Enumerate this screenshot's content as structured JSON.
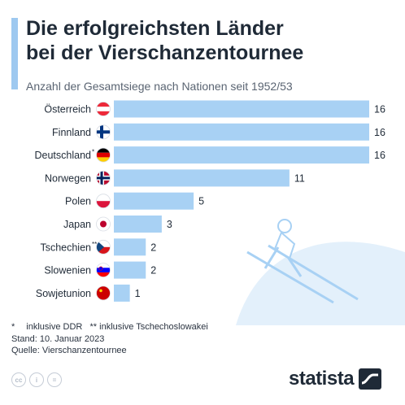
{
  "title_line1": "Die erfolgreichsten Länder",
  "title_line2": "bei der Vierschanzentournee",
  "subtitle": "Anzahl der Gesamtsiege nach Nationen seit 1952/53",
  "chart_data": {
    "type": "bar",
    "orientation": "horizontal",
    "categories": [
      "Österreich",
      "Finnland",
      "Deutschland",
      "Norwegen",
      "Polen",
      "Japan",
      "Tschechien",
      "Slowenien",
      "Sowjetunion"
    ],
    "category_marks": [
      "",
      "",
      "*",
      "",
      "",
      "",
      "**",
      "",
      ""
    ],
    "values": [
      16,
      16,
      16,
      11,
      5,
      3,
      2,
      2,
      1
    ],
    "xlim": [
      0,
      16
    ],
    "grid": false,
    "legend": "none",
    "bar_color": "#a8d1f4"
  },
  "flags": [
    "at-flag-icon",
    "fi-flag-icon",
    "de-flag-icon",
    "no-flag-icon",
    "pl-flag-icon",
    "jp-flag-icon",
    "cz-flag-icon",
    "si-flag-icon",
    "su-flag-icon"
  ],
  "notes": {
    "ddr_mark": "*",
    "ddr_text": "inklusive DDR",
    "cs_mark": "**",
    "cs_text": "inklusive Tschechoslowakei",
    "stand": "Stand: 10. Januar 2023",
    "quelle": "Quelle: Vierschanzentournee"
  },
  "brand": "statista",
  "colors": {
    "accent": "#9ec9f0",
    "text": "#1f2a37",
    "bar": "#a8d1f4"
  }
}
